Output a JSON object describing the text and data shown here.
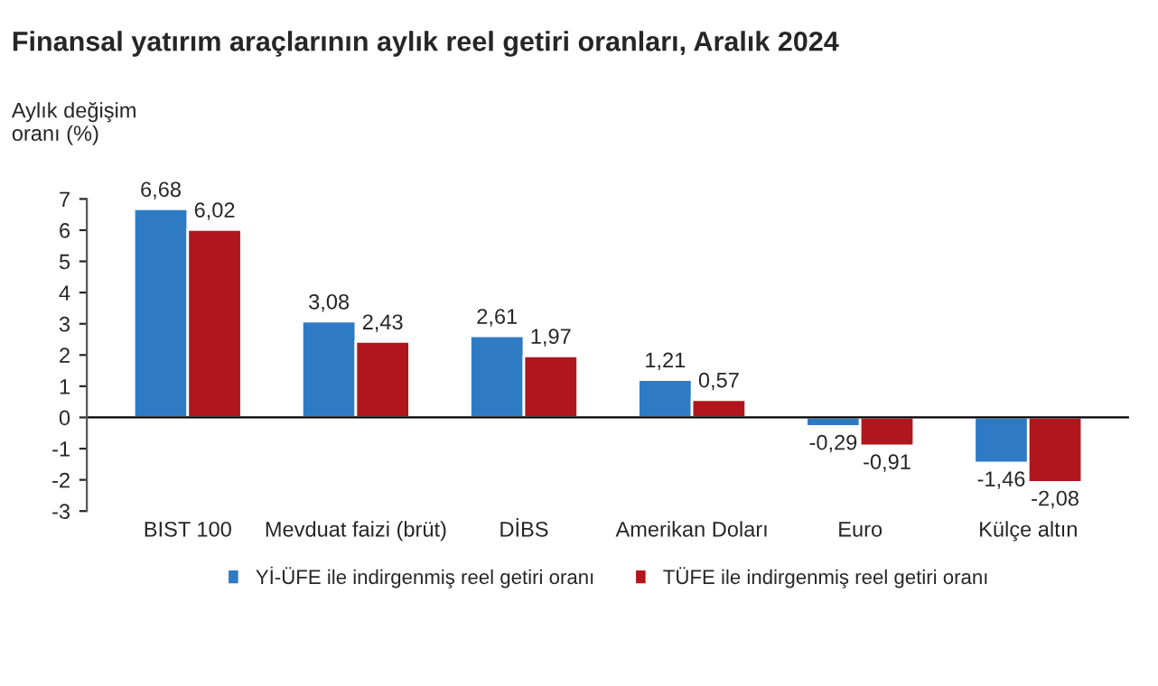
{
  "chart_data": {
    "type": "bar",
    "title": "Finansal yatırım araçlarının aylık reel getiri oranları, Aralık 2024",
    "ylabel": "Aylık değişim\noranı (%)",
    "categories": [
      "BIST 100",
      "Mevduat faizi (brüt)",
      "DİBS",
      "Amerikan Doları",
      "Euro",
      "Külçe altın"
    ],
    "series": [
      {
        "name": "Yİ-ÜFE ile indirgenmiş reel getiri oranı",
        "color": "#2e7bc4",
        "values": [
          6.68,
          3.08,
          2.61,
          1.21,
          -0.29,
          -1.46
        ],
        "value_labels": [
          "6,68",
          "3,08",
          "2,61",
          "1,21",
          "-0,29",
          "-1,46"
        ]
      },
      {
        "name": "TÜFE ile indirgenmiş reel getiri oranı",
        "color": "#b0161c",
        "values": [
          6.02,
          2.43,
          1.97,
          0.57,
          -0.91,
          -2.08
        ],
        "value_labels": [
          "6,02",
          "2,43",
          "1,97",
          "0,57",
          "-0,91",
          "-2,08"
        ]
      }
    ],
    "ylim": [
      -3,
      7
    ],
    "yticks": [
      -3,
      -2,
      -1,
      0,
      1,
      2,
      3,
      4,
      5,
      6,
      7
    ],
    "ref_lines": [
      {
        "axis": "y",
        "value": 0,
        "color": "#000000"
      }
    ],
    "grid": false,
    "legend": "bottom"
  }
}
